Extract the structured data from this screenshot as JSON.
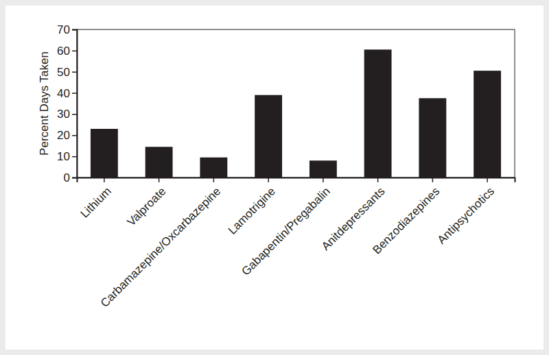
{
  "chart_data": {
    "type": "bar",
    "y_label": "Percent Days Taken",
    "categories": [
      "Lithium",
      "Valproate",
      "Carbamazepine/Oxcarbazepine",
      "Lamotrigine",
      "Gabapentin/Pregabalin",
      "Anitdepressants",
      "Benzodiazepines",
      "Antipsychotics"
    ],
    "values": [
      23,
      14.5,
      9.5,
      39,
      8,
      60.5,
      37.5,
      50.5
    ],
    "color": "#231f20",
    "ylim": [
      0,
      70
    ],
    "yticks": [
      0,
      10,
      20,
      30,
      40,
      50,
      60,
      70
    ],
    "grid": false
  }
}
